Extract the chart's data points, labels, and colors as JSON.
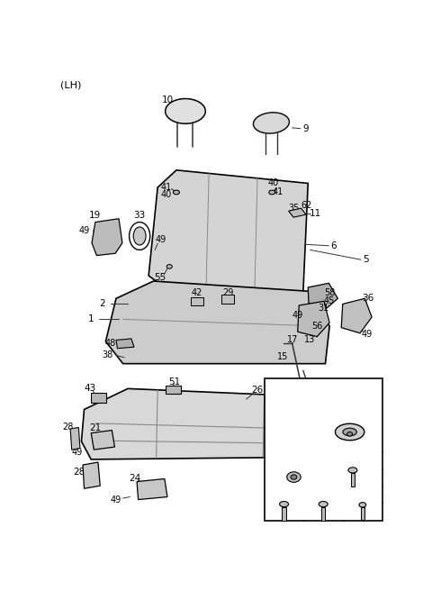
{
  "lh_label": "(LH)",
  "background_color": "#ffffff",
  "line_color": "#000000",
  "figsize": [
    4.8,
    6.56
  ],
  "dpi": 100
}
